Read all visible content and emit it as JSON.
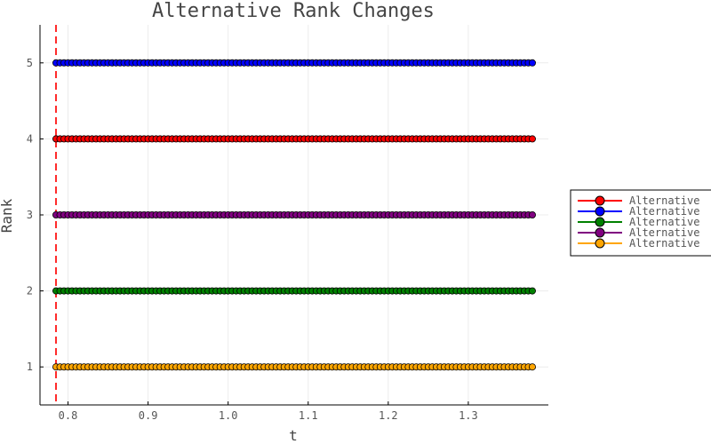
{
  "chart_data": {
    "type": "scatter",
    "title": "Alternative Rank Changes",
    "xlabel": "t",
    "ylabel": "Rank",
    "xlim": [
      0.765,
      1.4
    ],
    "ylim": [
      0.5,
      5.5
    ],
    "x_ticks": [
      "0.8",
      "0.9",
      "1.0",
      "1.1",
      "1.2",
      "1.3"
    ],
    "x_tick_values": [
      0.8,
      0.9,
      1.0,
      1.1,
      1.2,
      1.3
    ],
    "y_ticks": [
      "1",
      "2",
      "3",
      "4",
      "5"
    ],
    "y_tick_values": [
      1,
      2,
      3,
      4,
      5
    ],
    "grid": true,
    "legend_position": "right",
    "x_range": [
      0.785,
      1.38
    ],
    "x_step": 0.005,
    "vline_x": 0.785,
    "vline_color": "#ff2a2a",
    "series": [
      {
        "name": "Alternative",
        "color": "#ff0000",
        "rank": 4
      },
      {
        "name": "Alternative",
        "color": "#0000ff",
        "rank": 5
      },
      {
        "name": "Alternative",
        "color": "#008000",
        "rank": 2
      },
      {
        "name": "Alternative",
        "color": "#800080",
        "rank": 3
      },
      {
        "name": "Alternative",
        "color": "#ffa500",
        "rank": 1
      }
    ]
  }
}
